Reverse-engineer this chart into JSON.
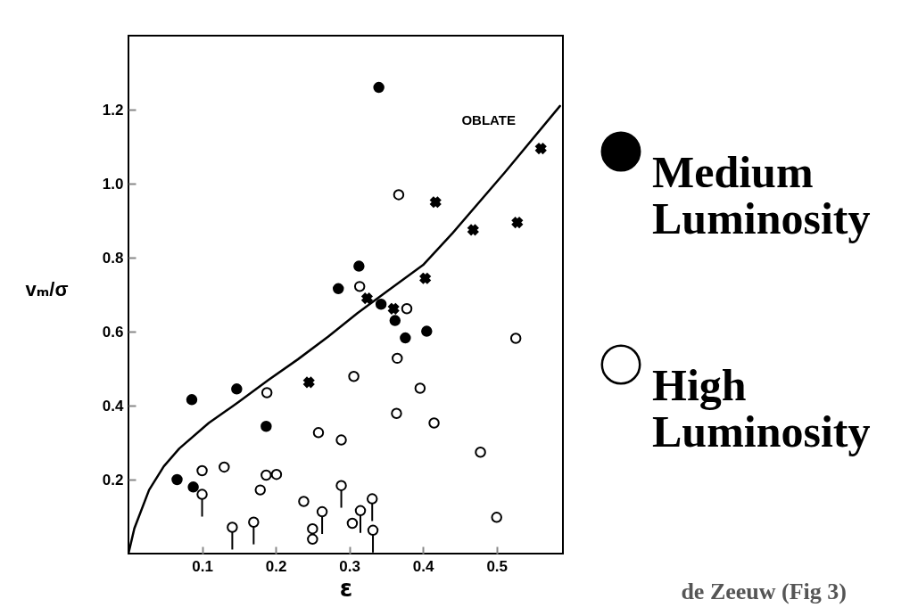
{
  "chart_data": {
    "type": "scatter",
    "xlabel": "ε",
    "ylabel": "vₘ/σ",
    "xlim": [
      0,
      0.59
    ],
    "ylim": [
      0,
      1.4
    ],
    "xticks": [
      0.1,
      0.2,
      0.3,
      0.4,
      0.5
    ],
    "yticks": [
      {
        "value": 0.2,
        "label": "0.2"
      },
      {
        "value": 0.4,
        "label": "0.4"
      },
      {
        "value": 0.6,
        "label": "0.6"
      },
      {
        "value": 0.8,
        "label": "0.8"
      },
      {
        "value": 1,
        "label": "1.0"
      },
      {
        "value": 1.2,
        "label": "1.2"
      }
    ],
    "grid": false,
    "legend": "right",
    "annotations": [
      "de Zeeuw (Fig 3)"
    ],
    "series": [
      {
        "name": "Medium Luminosity",
        "marker": "circle",
        "color": "#000000",
        "x": [
          0.066,
          0.086,
          0.088,
          0.147,
          0.187,
          0.285,
          0.313,
          0.343,
          0.362,
          0.376,
          0.405,
          0.34
        ],
        "values": [
          0.2,
          0.416,
          0.18,
          0.445,
          0.344,
          0.716,
          0.777,
          0.674,
          0.63,
          0.583,
          0.601,
          1.26
        ]
      },
      {
        "name": "High Luminosity",
        "marker": "circle",
        "color": "#ffffff",
        "x": [
          0.314,
          0.378,
          0.365,
          0.526,
          0.306,
          0.396,
          0.188,
          0.364,
          0.415,
          0.258,
          0.289,
          0.478,
          0.1,
          0.13,
          0.187,
          0.201,
          0.179,
          0.238,
          0.304,
          0.25,
          0.25,
          0.5,
          0.367,
          0.1,
          0.141,
          0.17,
          0.289,
          0.263,
          0.315,
          0.331,
          0.332
        ],
        "values": [
          0.722,
          0.662,
          0.528,
          0.582,
          0.479,
          0.447,
          0.435,
          0.379,
          0.353,
          0.327,
          0.307,
          0.274,
          0.224,
          0.234,
          0.212,
          0.214,
          0.172,
          0.141,
          0.082,
          0.067,
          0.039,
          0.098,
          0.97,
          0.16,
          0.071,
          0.085,
          0.184,
          0.113,
          0.116,
          0.148,
          0.063
        ],
        "errors": [
          null,
          null,
          null,
          null,
          null,
          null,
          null,
          null,
          null,
          null,
          null,
          null,
          null,
          null,
          null,
          null,
          null,
          null,
          null,
          null,
          null,
          null,
          null,
          [
            0.1,
            0.16
          ],
          [
            0.011,
            0.071
          ],
          [
            0.025,
            0.085
          ],
          [
            0.124,
            0.184
          ],
          [
            0.053,
            0.113
          ],
          [
            0.056,
            0.116
          ],
          [
            0.088,
            0.148
          ],
          [
            0.003,
            0.063
          ]
        ]
      },
      {
        "marker": "cross",
        "color": "#000000",
        "x": [
          0.324,
          0.36,
          0.245,
          0.403,
          0.417,
          0.468,
          0.528,
          0.56
        ],
        "values": [
          0.69,
          0.662,
          0.463,
          0.744,
          0.95,
          0.875,
          0.895,
          1.095
        ]
      },
      {
        "name": "OBLATE",
        "type": "line",
        "line_style": "solid",
        "color": "#000000",
        "x": [
          0,
          0.008,
          0.028,
          0.048,
          0.069,
          0.109,
          0.149,
          0.19,
          0.23,
          0.271,
          0.311,
          0.352,
          0.4,
          0.44,
          0.511,
          0.586
        ],
        "values": [
          0,
          0.068,
          0.172,
          0.236,
          0.284,
          0.353,
          0.409,
          0.469,
          0.525,
          0.586,
          0.65,
          0.71,
          0.78,
          0.866,
          1.03,
          1.21
        ]
      }
    ]
  }
}
